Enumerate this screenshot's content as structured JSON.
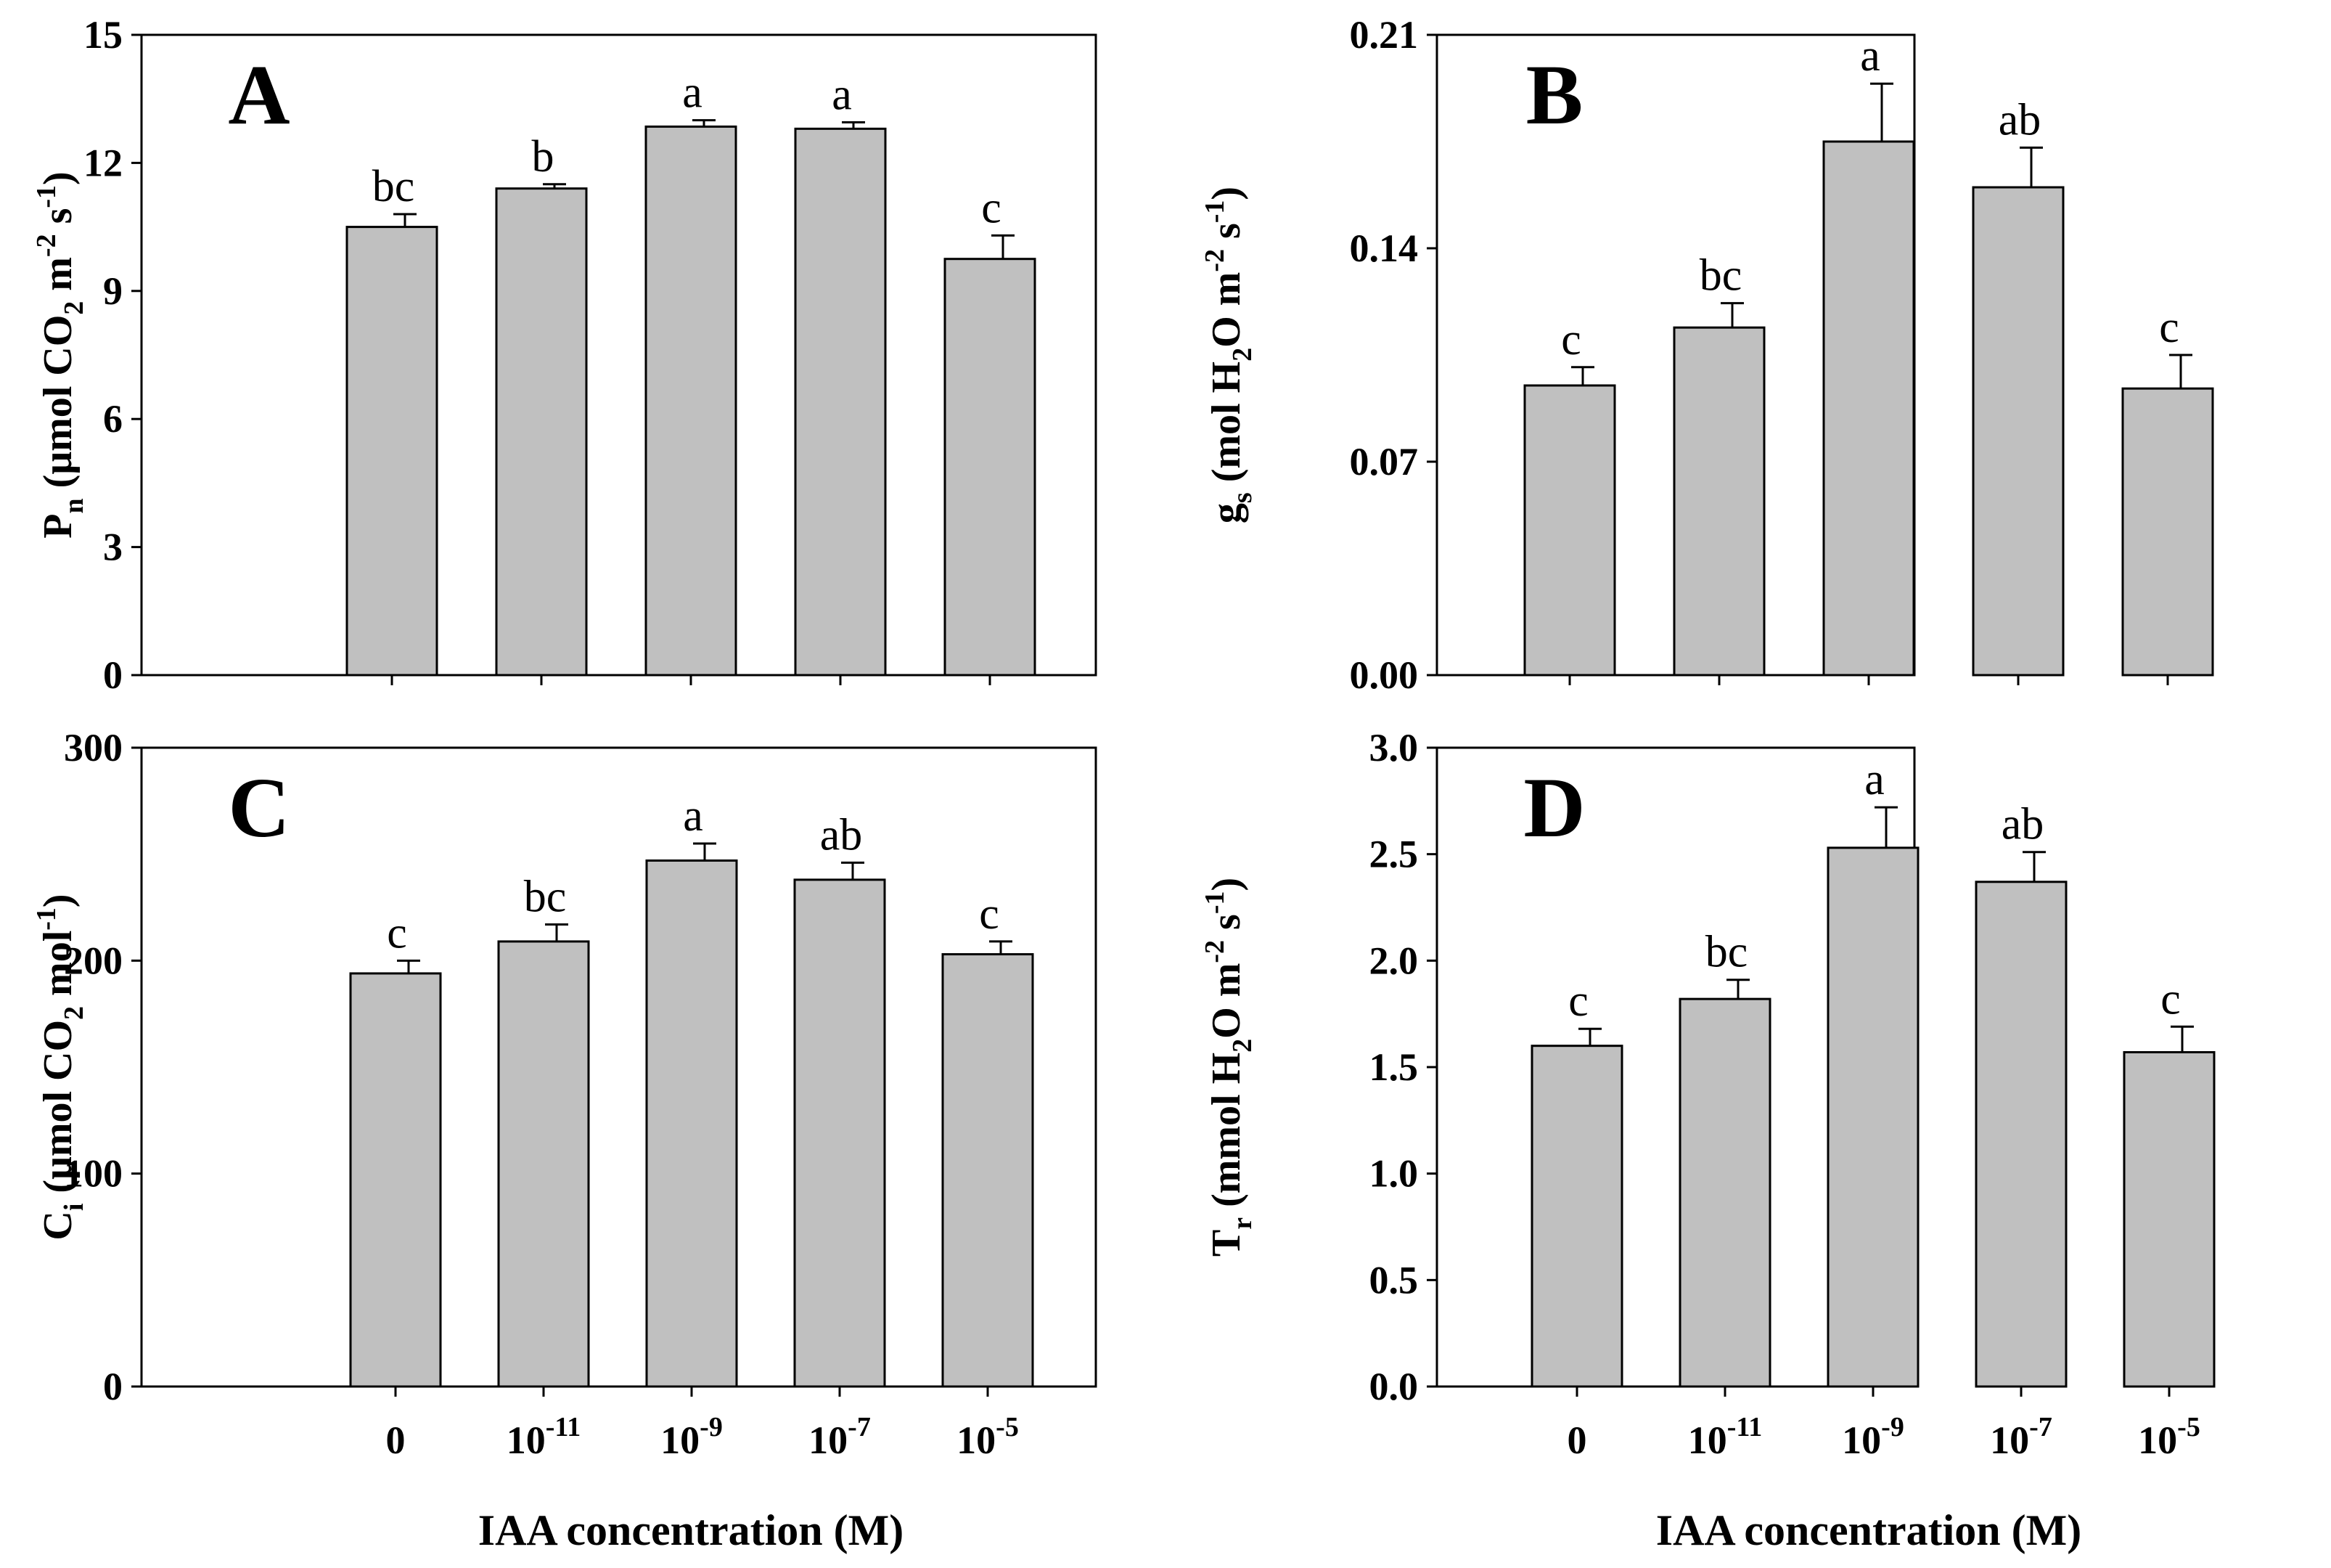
{
  "xlabel": "IAA concentration (M)",
  "style": {
    "bar_fill": "#c0c0c0",
    "stroke": "#000000",
    "background": "#ffffff"
  },
  "categories": [
    {
      "base": "0",
      "exp": ""
    },
    {
      "base": "10",
      "exp": "-11"
    },
    {
      "base": "10",
      "exp": "-9"
    },
    {
      "base": "10",
      "exp": "-7"
    },
    {
      "base": "10",
      "exp": "-5"
    }
  ],
  "chart_data": [
    {
      "type": "bar",
      "panel": "A",
      "ylabel": {
        "parts": [
          {
            "t": "P",
            "k": "n"
          },
          {
            "t": "n",
            "k": "sub"
          },
          {
            "t": " (μmol CO",
            "k": "n"
          },
          {
            "t": "2",
            "k": "sub"
          },
          {
            "t": " m",
            "k": "n"
          },
          {
            "t": "-2",
            "k": "sup"
          },
          {
            "t": " s",
            "k": "n"
          },
          {
            "t": "-1",
            "k": "sup"
          },
          {
            "t": ")",
            "k": "n"
          }
        ]
      },
      "ylim": [
        0,
        15
      ],
      "yticks": [
        "0",
        "3",
        "6",
        "9",
        "12",
        "15"
      ],
      "values": [
        10.5,
        11.4,
        12.85,
        12.8,
        9.75
      ],
      "errors": [
        0.3,
        0.1,
        0.15,
        0.15,
        0.55
      ],
      "letters": [
        "bc",
        "b",
        "a",
        "a",
        "c"
      ],
      "show_xticklabels": false
    },
    {
      "type": "bar",
      "panel": "B",
      "ylabel": {
        "parts": [
          {
            "t": "g",
            "k": "n"
          },
          {
            "t": "s",
            "k": "sub"
          },
          {
            "t": " (mol H",
            "k": "n"
          },
          {
            "t": "2",
            "k": "sub"
          },
          {
            "t": "O m",
            "k": "n"
          },
          {
            "t": "-2",
            "k": "sup"
          },
          {
            "t": " s",
            "k": "n"
          },
          {
            "t": "-1",
            "k": "sup"
          },
          {
            "t": ")",
            "k": "n"
          }
        ]
      },
      "ylim": [
        0,
        0.21
      ],
      "yticks": [
        "0.00",
        "0.07",
        "0.14",
        "0.21"
      ],
      "values": [
        0.095,
        0.114,
        0.175,
        0.16,
        0.094
      ],
      "errors": [
        0.006,
        0.008,
        0.019,
        0.013,
        0.011
      ],
      "letters": [
        "c",
        "bc",
        "a",
        "ab",
        "c"
      ],
      "show_xticklabels": false
    },
    {
      "type": "bar",
      "panel": "C",
      "ylabel": {
        "parts": [
          {
            "t": "C",
            "k": "n"
          },
          {
            "t": "i",
            "k": "sub"
          },
          {
            "t": " (μmol CO",
            "k": "n"
          },
          {
            "t": "2",
            "k": "sub"
          },
          {
            "t": " mol",
            "k": "n"
          },
          {
            "t": "-1",
            "k": "sup"
          },
          {
            "t": ")",
            "k": "n"
          }
        ]
      },
      "ylim": [
        0,
        300
      ],
      "yticks": [
        "0",
        "100",
        "200",
        "300"
      ],
      "values": [
        194,
        209,
        247,
        238,
        203
      ],
      "errors": [
        6,
        8,
        8,
        8,
        6
      ],
      "letters": [
        "c",
        "bc",
        "a",
        "ab",
        "c"
      ],
      "show_xticklabels": true
    },
    {
      "type": "bar",
      "panel": "D",
      "ylabel": {
        "parts": [
          {
            "t": "T",
            "k": "n"
          },
          {
            "t": "r",
            "k": "sub"
          },
          {
            "t": " (mmol H",
            "k": "n"
          },
          {
            "t": "2",
            "k": "sub"
          },
          {
            "t": "O m",
            "k": "n"
          },
          {
            "t": "-2",
            "k": "sup"
          },
          {
            "t": " s",
            "k": "n"
          },
          {
            "t": "-1",
            "k": "sup"
          },
          {
            "t": ")",
            "k": "n"
          }
        ]
      },
      "ylim": [
        0,
        3.0
      ],
      "yticks": [
        "0.0",
        "0.5",
        "1.0",
        "1.5",
        "2.0",
        "2.5",
        "3.0"
      ],
      "values": [
        1.6,
        1.82,
        2.53,
        2.37,
        1.57
      ],
      "errors": [
        0.08,
        0.09,
        0.19,
        0.14,
        0.12
      ],
      "letters": [
        "c",
        "bc",
        "a",
        "ab",
        "c"
      ],
      "show_xticklabels": true
    }
  ]
}
